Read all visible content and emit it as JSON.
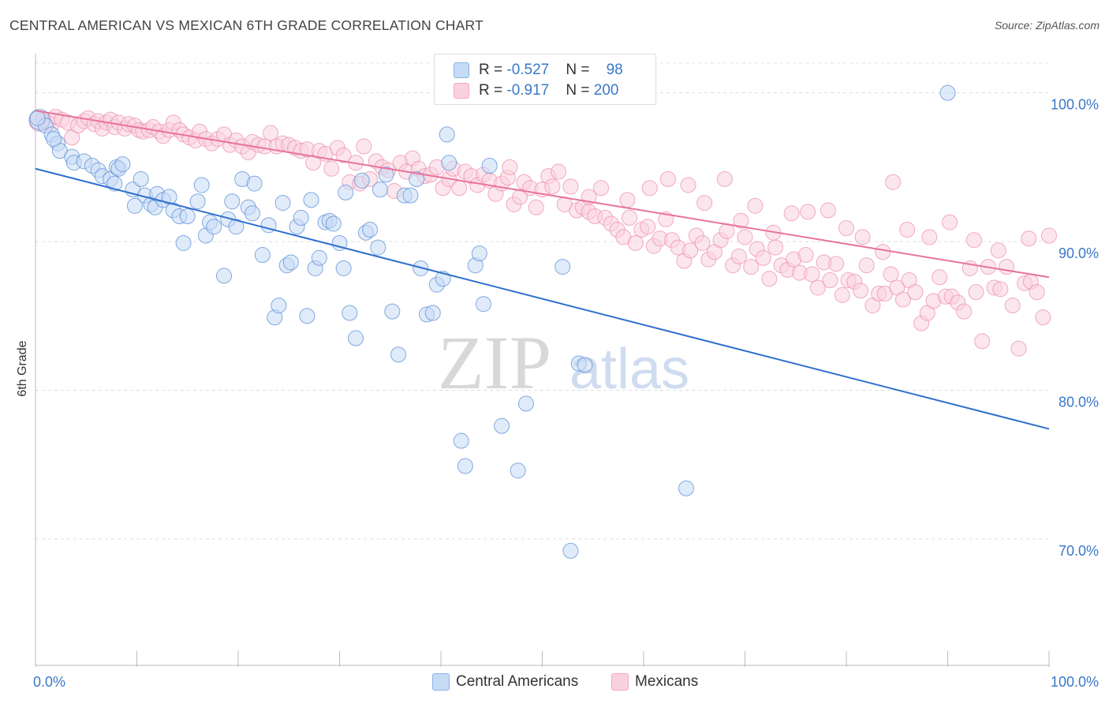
{
  "title": "CENTRAL AMERICAN VS MEXICAN 6TH GRADE CORRELATION CHART",
  "source": "Source: ZipAtlas.com",
  "watermark": {
    "zip": "ZIP",
    "atlas": "atlas"
  },
  "legend": {
    "rows": [
      {
        "r_label": "R = ",
        "r_value": "-0.527",
        "n_label": "N = ",
        "n_value": "98",
        "color": "#8ab4e8"
      },
      {
        "r_label": "R = ",
        "r_value": "-0.917",
        "n_label": "N = ",
        "n_value": "200",
        "color": "#f4a7bf"
      }
    ]
  },
  "bottom_legend": [
    {
      "label": "Central Americans",
      "color": "#8ab4e8"
    },
    {
      "label": "Mexicans",
      "color": "#f4a7bf"
    }
  ],
  "chart_data": {
    "type": "scatter",
    "title": "CENTRAL AMERICAN VS MEXICAN 6TH GRADE CORRELATION CHART",
    "xlabel": "",
    "ylabel": "6th Grade",
    "xlim": [
      0,
      100
    ],
    "ylim": [
      61.5,
      102
    ],
    "x_tick_labels": [
      "0.0%",
      "100.0%"
    ],
    "y_ticks": [
      100,
      90,
      80,
      70
    ],
    "y_tick_labels": [
      "100.0%",
      "90.0%",
      "80.0%",
      "70.0%"
    ],
    "grid": true,
    "legend_position": "top-center",
    "series": [
      {
        "name": "Central Americans",
        "color": "#5b8fd6",
        "fill": "#c6dbf5",
        "line_color": "#2f6fcc",
        "trend": {
          "x": [
            0,
            100
          ],
          "y": [
            94.9,
            77.4
          ]
        },
        "points": [
          [
            0.4,
            98.2
          ],
          [
            1.0,
            97.8
          ],
          [
            1.6,
            97.2
          ],
          [
            2.2,
            96.6
          ],
          [
            2.4,
            96.1
          ],
          [
            3.6,
            95.7
          ],
          [
            3.8,
            95.3
          ],
          [
            4.8,
            95.4
          ],
          [
            5.6,
            95.1
          ],
          [
            6.2,
            94.8
          ],
          [
            6.6,
            94.4
          ],
          [
            7.4,
            94.2
          ],
          [
            7.8,
            93.9
          ],
          [
            8.0,
            95.0
          ],
          [
            8.2,
            94.9
          ],
          [
            8.6,
            95.2
          ],
          [
            9.6,
            93.5
          ],
          [
            9.8,
            92.4
          ],
          [
            10.4,
            94.2
          ],
          [
            10.8,
            93.1
          ],
          [
            11.4,
            92.5
          ],
          [
            11.8,
            92.3
          ],
          [
            12.0,
            93.2
          ],
          [
            12.6,
            92.8
          ],
          [
            13.2,
            93.0
          ],
          [
            13.6,
            92.1
          ],
          [
            14.2,
            91.7
          ],
          [
            14.6,
            89.9
          ],
          [
            15.0,
            91.7
          ],
          [
            16.0,
            92.7
          ],
          [
            16.4,
            93.8
          ],
          [
            16.8,
            90.4
          ],
          [
            17.2,
            91.3
          ],
          [
            17.6,
            91.0
          ],
          [
            18.6,
            87.7
          ],
          [
            19.0,
            91.5
          ],
          [
            19.4,
            92.7
          ],
          [
            19.8,
            91.0
          ],
          [
            20.4,
            94.2
          ],
          [
            21.0,
            92.3
          ],
          [
            21.4,
            91.9
          ],
          [
            21.6,
            93.9
          ],
          [
            22.4,
            89.1
          ],
          [
            23.0,
            91.1
          ],
          [
            23.6,
            84.9
          ],
          [
            24.0,
            85.7
          ],
          [
            24.4,
            92.6
          ],
          [
            24.8,
            88.4
          ],
          [
            25.2,
            88.6
          ],
          [
            25.8,
            91.0
          ],
          [
            26.2,
            91.6
          ],
          [
            26.8,
            85.0
          ],
          [
            27.2,
            92.8
          ],
          [
            27.6,
            88.2
          ],
          [
            28.0,
            88.9
          ],
          [
            28.6,
            91.3
          ],
          [
            29.0,
            91.4
          ],
          [
            29.4,
            91.2
          ],
          [
            30.0,
            89.9
          ],
          [
            30.4,
            88.2
          ],
          [
            30.6,
            93.3
          ],
          [
            31.0,
            85.2
          ],
          [
            31.6,
            83.5
          ],
          [
            32.2,
            94.1
          ],
          [
            32.6,
            90.6
          ],
          [
            33.0,
            90.8
          ],
          [
            33.8,
            89.6
          ],
          [
            34.0,
            93.5
          ],
          [
            34.6,
            94.5
          ],
          [
            35.2,
            85.3
          ],
          [
            35.8,
            82.4
          ],
          [
            36.4,
            93.1
          ],
          [
            37.0,
            93.1
          ],
          [
            37.6,
            94.2
          ],
          [
            38.0,
            88.2
          ],
          [
            38.6,
            85.1
          ],
          [
            39.2,
            85.2
          ],
          [
            39.6,
            87.1
          ],
          [
            40.2,
            87.5
          ],
          [
            40.6,
            97.2
          ],
          [
            40.8,
            95.3
          ],
          [
            42.0,
            76.6
          ],
          [
            42.4,
            74.9
          ],
          [
            43.4,
            88.4
          ],
          [
            43.8,
            89.2
          ],
          [
            44.2,
            85.8
          ],
          [
            44.8,
            95.1
          ],
          [
            46.0,
            77.6
          ],
          [
            47.6,
            74.6
          ],
          [
            48.4,
            79.1
          ],
          [
            52.0,
            88.3
          ],
          [
            52.8,
            69.2
          ],
          [
            53.6,
            81.8
          ],
          [
            54.2,
            81.7
          ],
          [
            64.2,
            73.4
          ],
          [
            90.0,
            100.0
          ],
          [
            0.2,
            98.3
          ],
          [
            1.8,
            96.9
          ]
        ]
      },
      {
        "name": "Mexicans",
        "color": "#ee8fae",
        "fill": "#fad2df",
        "line_color": "#e8739b",
        "trend": {
          "x": [
            0,
            100
          ],
          "y": [
            98.8,
            87.6
          ]
        },
        "points": [
          [
            0.4,
            98.1
          ],
          [
            0.8,
            98.2
          ],
          [
            1.2,
            98.0
          ],
          [
            1.6,
            97.9
          ],
          [
            2.0,
            98.4
          ],
          [
            2.6,
            98.2
          ],
          [
            3.2,
            98.0
          ],
          [
            3.6,
            97.0
          ],
          [
            4.2,
            97.8
          ],
          [
            4.8,
            98.1
          ],
          [
            5.2,
            98.3
          ],
          [
            5.8,
            97.9
          ],
          [
            6.2,
            98.1
          ],
          [
            6.6,
            97.6
          ],
          [
            7.0,
            98.0
          ],
          [
            7.4,
            98.2
          ],
          [
            7.8,
            97.7
          ],
          [
            8.2,
            98.0
          ],
          [
            8.8,
            97.6
          ],
          [
            9.2,
            97.9
          ],
          [
            9.8,
            97.8
          ],
          [
            10.2,
            97.5
          ],
          [
            10.6,
            97.4
          ],
          [
            11.2,
            97.5
          ],
          [
            11.6,
            97.7
          ],
          [
            12.2,
            97.4
          ],
          [
            12.6,
            97.1
          ],
          [
            13.2,
            97.5
          ],
          [
            13.6,
            98.0
          ],
          [
            14.2,
            97.5
          ],
          [
            14.6,
            97.2
          ],
          [
            15.2,
            97.0
          ],
          [
            15.8,
            96.8
          ],
          [
            16.2,
            97.4
          ],
          [
            16.8,
            96.9
          ],
          [
            17.4,
            96.6
          ],
          [
            18.0,
            96.9
          ],
          [
            18.6,
            97.2
          ],
          [
            19.2,
            96.5
          ],
          [
            19.8,
            96.8
          ],
          [
            20.4,
            96.4
          ],
          [
            21.0,
            96.0
          ],
          [
            21.4,
            96.7
          ],
          [
            22.0,
            96.5
          ],
          [
            22.6,
            96.4
          ],
          [
            23.2,
            97.3
          ],
          [
            23.8,
            96.4
          ],
          [
            24.4,
            96.6
          ],
          [
            25.0,
            96.5
          ],
          [
            25.6,
            96.3
          ],
          [
            26.2,
            96.1
          ],
          [
            26.8,
            96.2
          ],
          [
            27.4,
            95.3
          ],
          [
            28.0,
            96.1
          ],
          [
            28.6,
            95.9
          ],
          [
            29.2,
            94.9
          ],
          [
            29.8,
            96.3
          ],
          [
            30.4,
            95.8
          ],
          [
            31.0,
            94.0
          ],
          [
            31.6,
            95.3
          ],
          [
            32.0,
            93.9
          ],
          [
            32.4,
            96.4
          ],
          [
            33.0,
            94.2
          ],
          [
            33.6,
            95.4
          ],
          [
            34.2,
            95.0
          ],
          [
            34.8,
            94.8
          ],
          [
            35.4,
            93.4
          ],
          [
            36.0,
            95.3
          ],
          [
            36.6,
            94.7
          ],
          [
            37.2,
            95.6
          ],
          [
            37.8,
            94.9
          ],
          [
            38.4,
            94.4
          ],
          [
            39.0,
            94.5
          ],
          [
            39.6,
            95.0
          ],
          [
            40.2,
            93.6
          ],
          [
            40.8,
            94.2
          ],
          [
            41.2,
            94.9
          ],
          [
            41.8,
            93.6
          ],
          [
            42.4,
            94.7
          ],
          [
            43.0,
            94.4
          ],
          [
            43.6,
            93.8
          ],
          [
            44.2,
            94.5
          ],
          [
            44.8,
            94.1
          ],
          [
            45.4,
            93.2
          ],
          [
            46.0,
            93.9
          ],
          [
            46.6,
            94.3
          ],
          [
            47.2,
            92.5
          ],
          [
            47.8,
            93.0
          ],
          [
            48.2,
            94.0
          ],
          [
            48.8,
            93.6
          ],
          [
            49.4,
            92.3
          ],
          [
            50.0,
            93.5
          ],
          [
            50.6,
            94.4
          ],
          [
            51.0,
            93.7
          ],
          [
            51.6,
            94.7
          ],
          [
            52.2,
            92.5
          ],
          [
            52.8,
            93.7
          ],
          [
            53.4,
            92.1
          ],
          [
            54.0,
            92.3
          ],
          [
            54.6,
            92.0
          ],
          [
            55.2,
            91.7
          ],
          [
            55.8,
            93.6
          ],
          [
            56.2,
            91.6
          ],
          [
            56.8,
            91.2
          ],
          [
            57.4,
            90.8
          ],
          [
            58.0,
            90.3
          ],
          [
            58.6,
            91.6
          ],
          [
            59.2,
            89.9
          ],
          [
            59.8,
            90.8
          ],
          [
            60.4,
            91.0
          ],
          [
            61.0,
            89.7
          ],
          [
            61.6,
            90.2
          ],
          [
            62.2,
            91.5
          ],
          [
            62.8,
            90.1
          ],
          [
            63.4,
            89.6
          ],
          [
            64.0,
            88.7
          ],
          [
            64.6,
            89.4
          ],
          [
            65.2,
            90.4
          ],
          [
            65.8,
            89.9
          ],
          [
            66.4,
            88.8
          ],
          [
            67.0,
            89.3
          ],
          [
            67.6,
            90.1
          ],
          [
            68.2,
            90.7
          ],
          [
            68.8,
            88.4
          ],
          [
            69.4,
            89.0
          ],
          [
            70.0,
            90.3
          ],
          [
            70.6,
            88.3
          ],
          [
            71.2,
            89.5
          ],
          [
            71.8,
            88.9
          ],
          [
            72.4,
            87.5
          ],
          [
            73.0,
            89.6
          ],
          [
            73.6,
            88.4
          ],
          [
            74.2,
            88.1
          ],
          [
            74.8,
            88.8
          ],
          [
            75.4,
            87.9
          ],
          [
            76.0,
            89.1
          ],
          [
            76.6,
            87.8
          ],
          [
            77.2,
            86.9
          ],
          [
            77.8,
            88.6
          ],
          [
            78.4,
            87.4
          ],
          [
            79.0,
            88.5
          ],
          [
            79.6,
            86.4
          ],
          [
            80.2,
            87.4
          ],
          [
            80.8,
            87.3
          ],
          [
            81.4,
            86.7
          ],
          [
            82.0,
            88.4
          ],
          [
            82.6,
            85.7
          ],
          [
            83.2,
            86.5
          ],
          [
            83.8,
            86.5
          ],
          [
            84.4,
            87.8
          ],
          [
            85.0,
            86.9
          ],
          [
            85.6,
            86.1
          ],
          [
            86.2,
            87.4
          ],
          [
            86.8,
            86.6
          ],
          [
            87.4,
            84.5
          ],
          [
            88.0,
            85.2
          ],
          [
            88.6,
            86.0
          ],
          [
            89.2,
            87.6
          ],
          [
            89.8,
            86.3
          ],
          [
            90.4,
            86.3
          ],
          [
            91.0,
            85.9
          ],
          [
            91.6,
            85.3
          ],
          [
            92.2,
            88.2
          ],
          [
            92.8,
            86.6
          ],
          [
            93.4,
            83.3
          ],
          [
            94.0,
            88.3
          ],
          [
            94.6,
            86.9
          ],
          [
            95.2,
            86.8
          ],
          [
            95.8,
            88.3
          ],
          [
            96.4,
            85.7
          ],
          [
            97.0,
            82.8
          ],
          [
            97.6,
            87.2
          ],
          [
            98.2,
            87.3
          ],
          [
            98.8,
            86.6
          ],
          [
            99.4,
            84.9
          ],
          [
            46.8,
            95.0
          ],
          [
            54.6,
            93.0
          ],
          [
            58.4,
            92.8
          ],
          [
            62.4,
            94.2
          ],
          [
            66.0,
            92.6
          ],
          [
            69.6,
            91.4
          ],
          [
            71.0,
            92.4
          ],
          [
            74.6,
            91.9
          ],
          [
            78.2,
            92.1
          ],
          [
            80.0,
            90.9
          ],
          [
            81.6,
            90.3
          ],
          [
            83.6,
            89.3
          ],
          [
            86.0,
            90.8
          ],
          [
            88.2,
            90.3
          ],
          [
            90.2,
            91.3
          ],
          [
            92.6,
            90.1
          ],
          [
            95.0,
            89.4
          ],
          [
            98.0,
            90.2
          ],
          [
            100.0,
            90.4
          ],
          [
            60.6,
            93.6
          ],
          [
            64.4,
            93.8
          ],
          [
            68.0,
            94.2
          ],
          [
            72.8,
            90.6
          ],
          [
            76.2,
            92.0
          ],
          [
            84.6,
            94.0
          ]
        ]
      }
    ]
  }
}
